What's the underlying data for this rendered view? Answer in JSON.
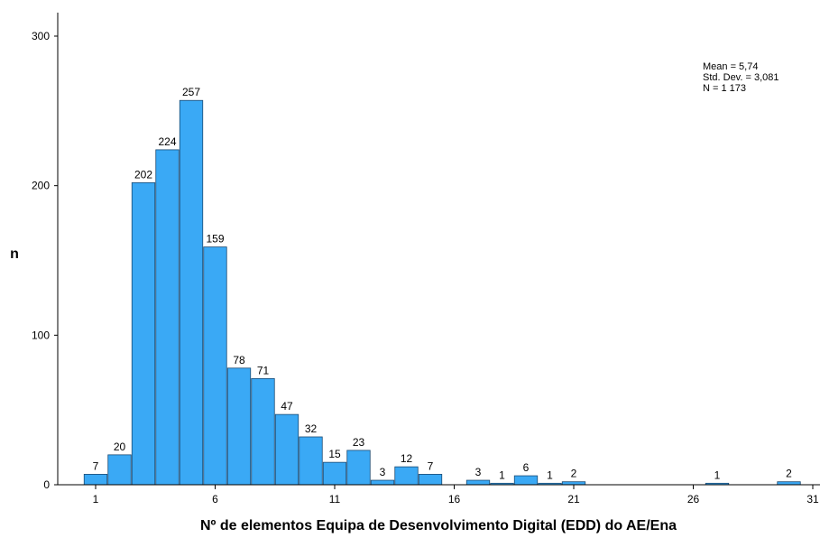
{
  "chart_data": {
    "type": "bar",
    "xlabel": "Nº de elementos Equipa de Desenvolvimento Digital (EDD) do AE/Ena",
    "ylabel": "n",
    "x": [
      1,
      2,
      3,
      4,
      5,
      6,
      7,
      8,
      9,
      10,
      11,
      12,
      13,
      14,
      15,
      17,
      18,
      19,
      20,
      21,
      27,
      30
    ],
    "values": [
      7,
      20,
      202,
      224,
      257,
      159,
      78,
      71,
      47,
      32,
      15,
      23,
      3,
      12,
      7,
      3,
      1,
      6,
      1,
      2,
      1,
      2
    ],
    "data_labels": [
      "7",
      "20",
      "202",
      "224",
      "257",
      "159",
      "78",
      "71",
      "47",
      "32",
      "15",
      "23",
      "3",
      "12",
      "7",
      "3",
      "1",
      "6",
      "1",
      "2",
      "1",
      "2"
    ],
    "xlim": [
      0.5,
      31
    ],
    "ylim": [
      0,
      315
    ],
    "x_ticks": [
      1,
      6,
      11,
      16,
      21,
      26,
      31
    ],
    "x_tick_labels": [
      "1",
      "6",
      "11",
      "16",
      "21",
      "26",
      "31"
    ],
    "y_ticks": [
      0,
      100,
      200,
      300
    ],
    "y_tick_labels": [
      "0",
      "100",
      "200",
      "300"
    ],
    "grid": false,
    "legend": null,
    "colors": {
      "bar_fill": "#3aa9f5",
      "bar_stroke": "#1a4a73"
    },
    "stats_box": {
      "position": "top-right",
      "lines": [
        "Mean = 5,74",
        "Std. Dev. = 3,081",
        "N = 1 173"
      ]
    }
  }
}
